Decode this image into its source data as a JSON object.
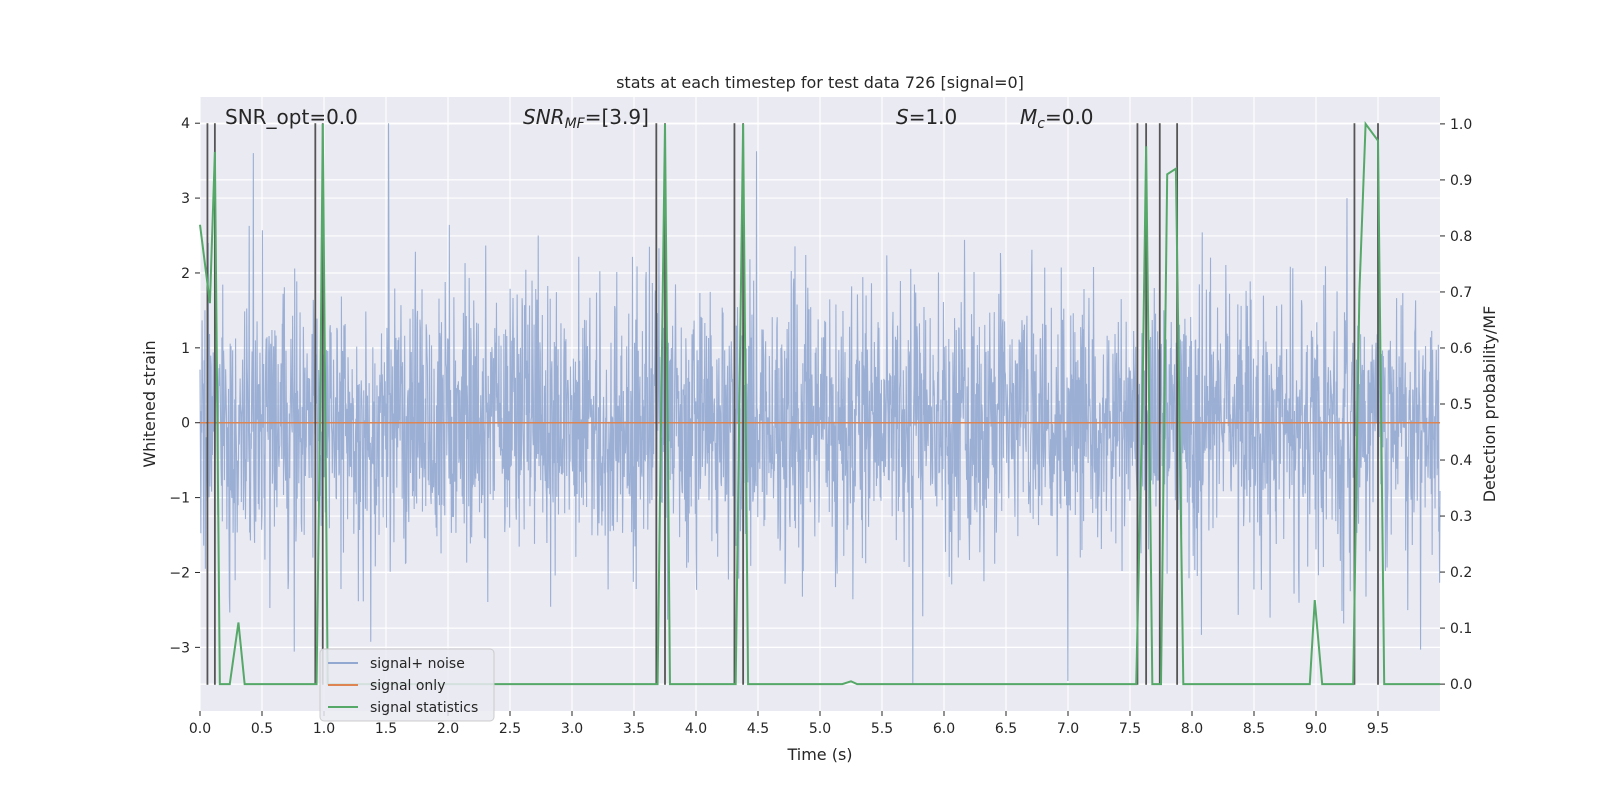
{
  "chart_data": {
    "type": "line",
    "title": "stats at each timestep for test data 726 [signal=0]",
    "xlabel": "Time (s)",
    "ylabel": "Whitened strain",
    "ylabel_right": "Detection probability/MF",
    "xlim": [
      0,
      10
    ],
    "ylim": [
      -3.85,
      4.35
    ],
    "ylim_right": [
      -0.048,
      1.048
    ],
    "x_ticks": [
      "0.0",
      "0.5",
      "1.0",
      "1.5",
      "2.0",
      "2.5",
      "3.0",
      "3.5",
      "4.0",
      "4.5",
      "5.0",
      "5.5",
      "6.0",
      "6.5",
      "7.0",
      "7.5",
      "8.0",
      "8.5",
      "9.0",
      "9.5"
    ],
    "y_ticks": [
      "−3",
      "−2",
      "−1",
      "0",
      "1",
      "2",
      "3",
      "4"
    ],
    "y_ticks_right": [
      "0.0",
      "0.1",
      "0.2",
      "0.3",
      "0.4",
      "0.5",
      "0.6",
      "0.7",
      "0.8",
      "0.9",
      "1.0"
    ],
    "grid": true,
    "legend_position": "lower-left",
    "annotations": {
      "snr_opt": "SNR_opt=0.0",
      "snr_mf_sym": "SNR",
      "snr_mf_sub": "MF",
      "snr_mf_val": "=[3.9]",
      "s_sym": "S",
      "s_val": "=1.0",
      "mc_sym": "M",
      "mc_sub": "c",
      "mc_val": "=0.0"
    },
    "series": [
      {
        "name": "signal+ noise",
        "color": "#92a8d1",
        "description": "dense whitened noise, approx. Gaussian, std ~0.9, range about -3.5 to 4.0",
        "noise_std": 0.9,
        "peaks": [
          [
            0.43,
            3.6
          ],
          [
            1.52,
            4.0
          ],
          [
            9.25,
            3.0
          ],
          [
            5.75,
            -3.5
          ],
          [
            7.0,
            -3.45
          ]
        ]
      },
      {
        "name": "signal only",
        "color": "#dd8452",
        "x": [
          0,
          10
        ],
        "y": [
          0,
          0
        ]
      },
      {
        "name": "signal statistics",
        "color": "#55a868",
        "axis": "right",
        "x": [
          0.0,
          0.04,
          0.08,
          0.12,
          0.16,
          0.19,
          0.24,
          0.31,
          0.36,
          0.42,
          0.94,
          0.97,
          0.99,
          1.03,
          3.69,
          3.72,
          3.75,
          3.79,
          3.88,
          4.32,
          4.35,
          4.38,
          4.42,
          5.18,
          5.25,
          5.3,
          7.55,
          7.6,
          7.63,
          7.68,
          7.75,
          7.8,
          7.87,
          7.93,
          8.95,
          8.99,
          9.05,
          9.3,
          9.35,
          9.4,
          9.5,
          9.55,
          10.0
        ],
        "y": [
          0.82,
          0.75,
          0.68,
          0.95,
          0.0,
          0.0,
          0.0,
          0.11,
          0.0,
          0.0,
          0.0,
          0.5,
          1.0,
          0.0,
          0.0,
          0.5,
          1.0,
          0.0,
          0.0,
          0.0,
          0.5,
          1.0,
          0.0,
          0.0,
          0.005,
          0.0,
          0.0,
          0.5,
          0.96,
          0.0,
          0.0,
          0.91,
          0.92,
          0.0,
          0.0,
          0.15,
          0.0,
          0.0,
          0.7,
          1.0,
          0.97,
          0.0,
          0.0
        ]
      }
    ],
    "detection_markers": {
      "color": "#555555",
      "x": [
        0.06,
        0.12,
        0.93,
        0.99,
        3.68,
        3.75,
        4.31,
        4.38,
        7.56,
        7.63,
        7.74,
        7.88,
        9.31,
        9.5
      ]
    }
  }
}
